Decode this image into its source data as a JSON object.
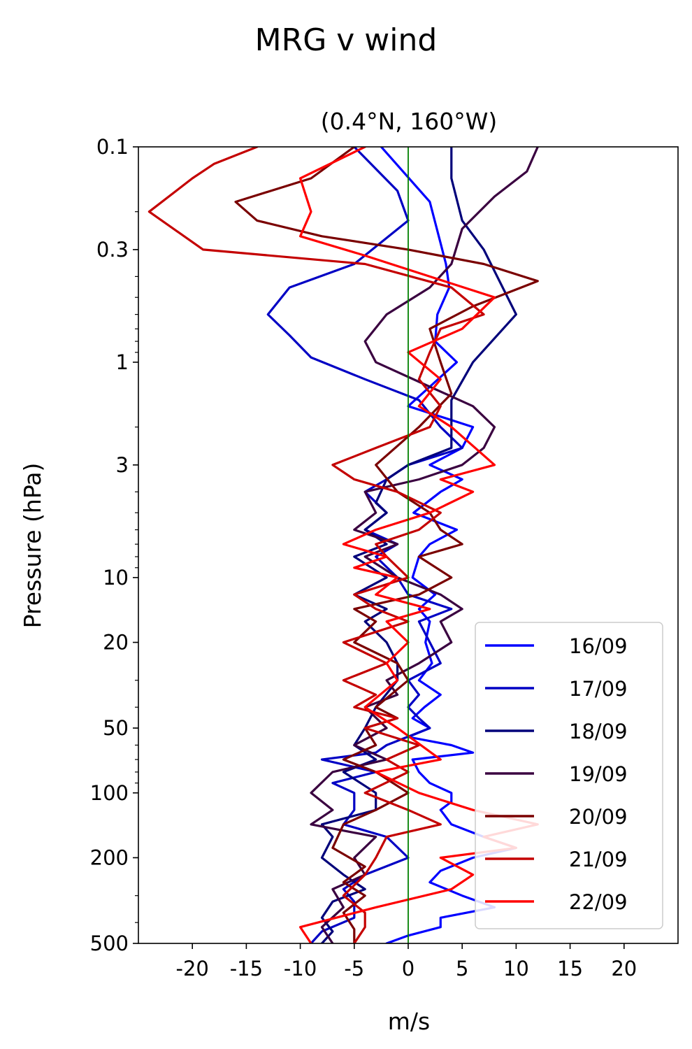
{
  "chart_data": {
    "type": "line",
    "title": "MRG v wind",
    "subtitle": "(0.4°N, 160°W)",
    "xlabel": "m/s",
    "ylabel": "Pressure (hPa)",
    "xlim": [
      -25,
      25
    ],
    "ylim": [
      500,
      0.1
    ],
    "yscale": "log",
    "x_ticks": [
      -20,
      -15,
      -10,
      -5,
      0,
      5,
      10,
      15,
      20
    ],
    "x_tick_labels": [
      "-20",
      "-15",
      "-10",
      "-5",
      "0",
      "5",
      "10",
      "15",
      "20"
    ],
    "y_ticks": [
      0.1,
      0.3,
      1,
      3,
      10,
      20,
      50,
      100,
      200,
      500
    ],
    "y_tick_labels": [
      "0.1",
      "0.3",
      "1",
      "3",
      "10",
      "20",
      "50",
      "100",
      "200",
      "500"
    ],
    "grid": false,
    "legend_position": "lower-right",
    "zero_line": {
      "x": 0,
      "color": "#008000"
    },
    "series": [
      {
        "name": "16/09",
        "color": "#0000ff",
        "x": [
          -2.5,
          2,
          3,
          3.5,
          3.8,
          2.7,
          2.5,
          4.5,
          2,
          0,
          6,
          5,
          2,
          5,
          3,
          0.5,
          4.5,
          2,
          1,
          0.4,
          2.5,
          1,
          2,
          1.6,
          2.2,
          1,
          3,
          1.5,
          0.4,
          2,
          0,
          4,
          6,
          0.4,
          1,
          2,
          4,
          4,
          3,
          4,
          7,
          10,
          6,
          3,
          2,
          5,
          8,
          3,
          3,
          0,
          -2
        ],
        "p": [
          0.1,
          0.18,
          0.28,
          0.35,
          0.45,
          0.6,
          0.8,
          1,
          1.3,
          1.6,
          2,
          2.5,
          3,
          3.5,
          4,
          5,
          6,
          7,
          8,
          10,
          12,
          14,
          16,
          20,
          25,
          30,
          35,
          40,
          45,
          50,
          55,
          60,
          65,
          70,
          80,
          90,
          100,
          110,
          120,
          140,
          160,
          180,
          200,
          230,
          260,
          300,
          340,
          380,
          420,
          460,
          500
        ]
      },
      {
        "name": "17/09",
        "color": "#0000c4",
        "x": [
          -5,
          -1,
          0,
          -5,
          -11,
          -13,
          -11,
          -9,
          -4,
          1,
          3,
          5,
          0,
          -2,
          -4,
          -2,
          -4,
          -1,
          -3,
          -1,
          0,
          4,
          1,
          2,
          3,
          0,
          1,
          0,
          1,
          2,
          -2,
          -3,
          -8,
          -3,
          -7,
          -5,
          -5,
          -6,
          -2,
          0,
          -4,
          -6,
          -5,
          -5,
          -8,
          -9
        ],
        "p": [
          0.1,
          0.16,
          0.22,
          0.35,
          0.45,
          0.6,
          0.75,
          0.95,
          1.2,
          1.5,
          2,
          2.5,
          3,
          3.5,
          4,
          5,
          6,
          7,
          8,
          10,
          12,
          14,
          16,
          20,
          25,
          30,
          35,
          40,
          45,
          50,
          60,
          65,
          70,
          80,
          90,
          100,
          120,
          140,
          160,
          200,
          240,
          280,
          320,
          380,
          440,
          500
        ]
      },
      {
        "name": "18/09",
        "color": "#00007a",
        "x": [
          4,
          4,
          5,
          7,
          10,
          6,
          4,
          4,
          0,
          -2,
          -3,
          -2,
          -4,
          -2,
          -5,
          -2,
          -5,
          -2,
          -4,
          -2,
          -1,
          -1,
          -3,
          -4,
          -5,
          -3,
          -6,
          -3,
          -3,
          -8,
          -7,
          -8,
          -6,
          -4,
          -7,
          -8,
          -7,
          -8
        ],
        "p": [
          0.1,
          0.14,
          0.22,
          0.3,
          0.6,
          1,
          1.5,
          2.5,
          3,
          3.5,
          4.5,
          5,
          6,
          7,
          8,
          10,
          12,
          14,
          16,
          20,
          25,
          30,
          40,
          50,
          60,
          70,
          80,
          100,
          120,
          140,
          160,
          200,
          240,
          280,
          320,
          380,
          440,
          500
        ]
      },
      {
        "name": "19/09",
        "color": "#3a0040",
        "x": [
          12,
          11,
          8,
          5,
          4,
          2,
          -2,
          -4,
          -3,
          2,
          6,
          8,
          7,
          5,
          1,
          -4,
          -3,
          -5,
          -1,
          -4,
          -1,
          3,
          5,
          3,
          4,
          1,
          -2,
          -1,
          -4,
          -2,
          -5,
          -2,
          -7,
          -9,
          -7,
          -9,
          -3,
          -5,
          -4,
          -7,
          -6,
          -8,
          -7
        ],
        "p": [
          0.1,
          0.13,
          0.17,
          0.24,
          0.35,
          0.45,
          0.6,
          0.8,
          1,
          1.3,
          1.6,
          2,
          2.5,
          3,
          3.5,
          4,
          5,
          6,
          7,
          8,
          10,
          12,
          14,
          16,
          20,
          25,
          30,
          35,
          40,
          50,
          60,
          70,
          80,
          100,
          120,
          140,
          160,
          200,
          240,
          280,
          340,
          420,
          500
        ]
      },
      {
        "name": "20/09",
        "color": "#7a0000",
        "x": [
          -5,
          -9,
          -16,
          -14,
          -8,
          0,
          7,
          12,
          6,
          2,
          3,
          4,
          1,
          -3,
          -1,
          2,
          3,
          5,
          1,
          4,
          1,
          -5,
          -3,
          -5,
          -1,
          0,
          -3,
          -1,
          -4,
          -3,
          -6,
          -3,
          0,
          -3,
          -6,
          -7,
          -4,
          -6,
          -4,
          -6,
          -5,
          -5
        ],
        "p": [
          0.1,
          0.14,
          0.18,
          0.22,
          0.26,
          0.3,
          0.35,
          0.42,
          0.55,
          0.7,
          1,
          1.4,
          2,
          3,
          4,
          5,
          6,
          7,
          8,
          10,
          12,
          14,
          16,
          20,
          25,
          30,
          40,
          45,
          50,
          60,
          70,
          80,
          100,
          120,
          140,
          180,
          220,
          260,
          300,
          360,
          430,
          500
        ]
      },
      {
        "name": "21/09",
        "color": "#c40000",
        "x": [
          -14,
          -18,
          -20,
          -24,
          -19,
          -4,
          4,
          7,
          3,
          2,
          1,
          3,
          2,
          -3,
          -7,
          -5,
          -1,
          3,
          1,
          -3,
          -2,
          0,
          -5,
          -3,
          0,
          -6,
          -2,
          -6,
          -3,
          -5,
          -1,
          -4,
          1,
          -2,
          0,
          -4,
          0,
          3,
          -2,
          -3,
          -4,
          -6,
          -4,
          -4,
          -5
        ],
        "p": [
          0.1,
          0.12,
          0.14,
          0.2,
          0.3,
          0.35,
          0.45,
          0.6,
          0.7,
          0.9,
          1.2,
          1.6,
          2,
          2.5,
          3,
          3.5,
          4,
          5,
          6,
          7,
          8,
          10,
          12,
          14,
          16,
          20,
          25,
          30,
          35,
          40,
          45,
          50,
          60,
          70,
          80,
          100,
          120,
          140,
          160,
          200,
          240,
          300,
          360,
          420,
          500
        ]
      },
      {
        "name": "22/09",
        "color": "#ff0000",
        "x": [
          -4,
          -10,
          -9,
          -10,
          -4,
          2,
          8,
          5,
          0,
          3,
          1,
          4,
          8,
          3,
          6,
          2,
          -3,
          -6,
          -2,
          -5,
          -1,
          -3,
          2,
          -2,
          0,
          -2,
          -1,
          -4,
          -1,
          3,
          -3,
          1,
          6,
          12,
          7,
          10,
          3,
          6,
          4,
          -3,
          -10,
          -9
        ],
        "p": [
          0.1,
          0.14,
          0.2,
          0.26,
          0.32,
          0.4,
          0.5,
          0.7,
          0.9,
          1.2,
          1.6,
          2,
          3,
          3.5,
          4,
          5,
          6,
          7,
          8,
          9,
          10,
          12,
          14,
          16,
          20,
          25,
          30,
          40,
          50,
          70,
          80,
          100,
          120,
          140,
          160,
          180,
          200,
          240,
          280,
          340,
          420,
          500
        ]
      }
    ]
  }
}
